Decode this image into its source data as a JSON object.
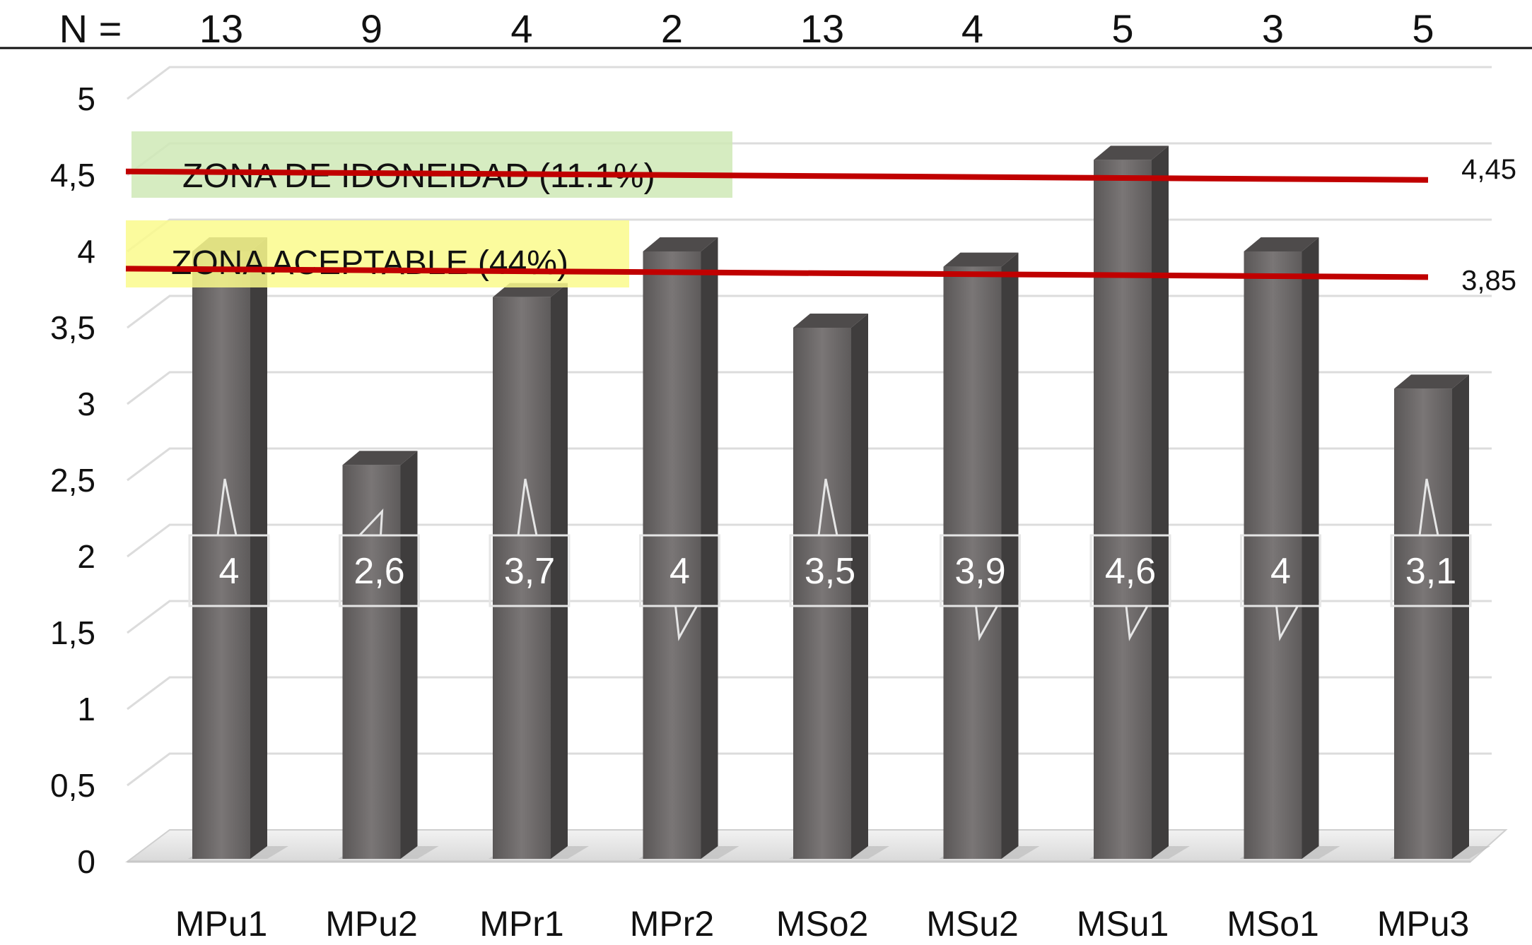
{
  "chart_data": {
    "type": "bar",
    "title": "",
    "xlabel": "",
    "ylabel": "",
    "categories": [
      "MPu1",
      "MPu2",
      "MPr1",
      "MPr2",
      "MSo2",
      "MSu2",
      "MSu1",
      "MSo1",
      "MPu3"
    ],
    "values": [
      4,
      2.6,
      3.7,
      4,
      3.5,
      3.9,
      4.6,
      4,
      3.1
    ],
    "data_labels": [
      "4",
      "2,6",
      "3,7",
      "4",
      "3,5",
      "3,9",
      "4,6",
      "4",
      "3,1"
    ],
    "ylim": [
      0,
      5
    ],
    "yticks": [
      "0",
      "0,5",
      "1",
      "1,5",
      "2",
      "2,5",
      "3",
      "3,5",
      "4",
      "4,5",
      "5"
    ],
    "grid": true,
    "bar_color": "#6b6868",
    "n_row": {
      "label": "N =",
      "values": [
        "13",
        "9",
        "4",
        "2",
        "13",
        "4",
        "5",
        "3",
        "5"
      ]
    },
    "reference_lines": [
      {
        "value": 4.45,
        "label": "4,45",
        "color": "#c00000"
      },
      {
        "value": 3.85,
        "label": "3,85",
        "color": "#c00000"
      }
    ],
    "zones": [
      {
        "label": "ZONA DE IDONEIDAD (11.1%)",
        "color": "#cfe9b6"
      },
      {
        "label": "ZONA ACEPTABLE (44%)",
        "color": "#fafa8c"
      }
    ]
  }
}
